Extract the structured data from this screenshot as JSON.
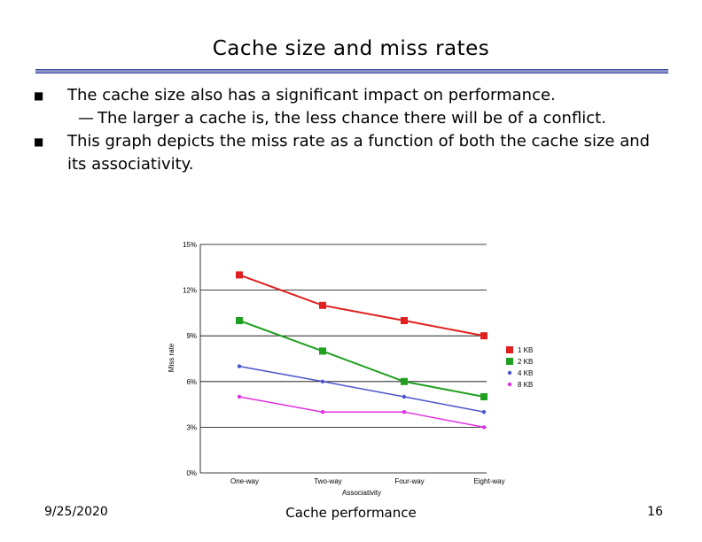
{
  "slide": {
    "title": "Cache size and miss rates",
    "bullets": [
      "The cache size also has a significant impact on performance.",
      "This graph depicts the miss rate as a function of both the cache size and its associativity."
    ],
    "subbullet": "The larger a cache is, the less chance there will be of a conflict."
  },
  "footer": {
    "date": "9/25/2020",
    "center": "Cache performance",
    "page": "16"
  },
  "colors": {
    "rule": "#8a93c8",
    "red": "#e02020",
    "green": "#20a020",
    "blue": "#4a55cc",
    "magenta": "#e030e0"
  },
  "chart_data": {
    "type": "line",
    "xlabel": "Associativity",
    "ylabel": "Miss rate",
    "categories": [
      "One-way",
      "Two-way",
      "Four-way",
      "Eight-way"
    ],
    "yticks": [
      "15%",
      "12%",
      "9%",
      "6%",
      "3%",
      "0%"
    ],
    "ylim": [
      0,
      15
    ],
    "grid": true,
    "legend_position": "right",
    "series": [
      {
        "name": "1 KB",
        "color": "#e02020",
        "values": [
          13,
          11,
          10,
          9
        ]
      },
      {
        "name": "2 KB",
        "color": "#20a020",
        "values": [
          10,
          8,
          6,
          5
        ]
      },
      {
        "name": "4 KB",
        "color": "#4a55cc",
        "values": [
          7,
          6,
          5,
          4
        ]
      },
      {
        "name": "8 KB",
        "color": "#e030e0",
        "values": [
          5,
          4,
          4,
          3
        ]
      }
    ]
  }
}
